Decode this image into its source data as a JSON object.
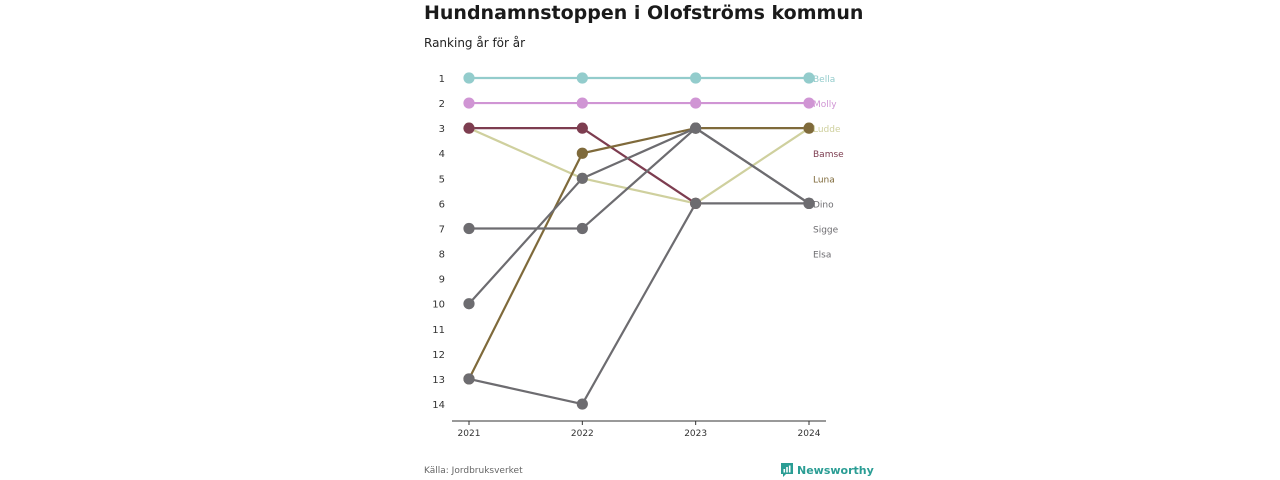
{
  "header": {
    "title": "Hundnamnstoppen i Olofströms kommun",
    "subtitle": "Ranking år för år"
  },
  "footer": {
    "source": "Källa: Jordbruksverket",
    "brand": "Newsworthy",
    "brand_icon": "newsworthy-logo-icon"
  },
  "colors": {
    "axis": "#333333",
    "tick_text": "#333333"
  },
  "chart_data": {
    "type": "line",
    "subtype": "bump",
    "title": "Hundnamnstoppen i Olofströms kommun",
    "subtitle": "Ranking år för år",
    "x": [
      "2021",
      "2022",
      "2023",
      "2024"
    ],
    "y_ticks": [
      "1",
      "2",
      "3",
      "4",
      "5",
      "6",
      "7",
      "8",
      "9",
      "10",
      "11",
      "12",
      "13",
      "14"
    ],
    "ylim": [
      1,
      14
    ],
    "y_inverted": true,
    "grid": false,
    "legend": "labels at right end of lines",
    "series": [
      {
        "name": "Bella",
        "color": "#93cccc",
        "values": [
          1,
          1,
          1,
          1
        ]
      },
      {
        "name": "Molly",
        "color": "#d095d4",
        "values": [
          2,
          2,
          2,
          2
        ]
      },
      {
        "name": "Ludde",
        "color": "#cfd09e",
        "values": [
          3,
          5,
          6,
          3
        ]
      },
      {
        "name": "Bamse",
        "color": "#7d3d50",
        "values": [
          3,
          3,
          6,
          null
        ]
      },
      {
        "name": "Luna",
        "color": "#7f6a3b",
        "values": [
          13,
          4,
          3,
          3
        ]
      },
      {
        "name": "Dino",
        "color": "#6d6c70",
        "values": [
          10,
          5,
          3,
          6
        ]
      },
      {
        "name": "Sigge",
        "color": "#6d6c70",
        "values": [
          7,
          7,
          3,
          6
        ]
      },
      {
        "name": "Elsa",
        "color": "#6d6c70",
        "values": [
          13,
          14,
          6,
          6
        ]
      }
    ]
  }
}
